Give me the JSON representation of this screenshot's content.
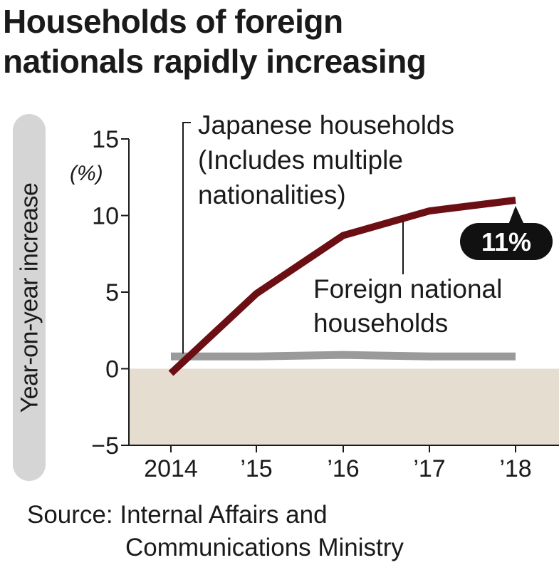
{
  "title": {
    "line1": "Households of foreign",
    "line2": "nationals rapidly increasing"
  },
  "source": {
    "line1": "Source: Internal Affairs and",
    "line2": "Communications Ministry"
  },
  "colors": {
    "foreign_line": "#6b0f14",
    "japanese_line": "#9a9a9a",
    "negative_band": "#e4ddd0",
    "ylabel_pill": "#d5d5d5",
    "badge": "#111111"
  },
  "chart_data": {
    "type": "line",
    "ylabel": "Year-on-year increase",
    "yunit": "(%)",
    "ylim": [
      -5,
      15
    ],
    "yticks": [
      "15",
      "10",
      "5",
      "0",
      "−5"
    ],
    "ytick_values": [
      15,
      10,
      5,
      0,
      -5
    ],
    "categories": [
      "2014",
      "’15",
      "’16",
      "’17",
      "’18"
    ],
    "series": [
      {
        "name": "Foreign national households",
        "values": [
          -0.3,
          4.9,
          8.7,
          10.3,
          11.0
        ]
      },
      {
        "name": "Japanese households (Includes multiple nationalities)",
        "values": [
          0.8,
          0.8,
          0.9,
          0.8,
          0.8
        ]
      }
    ],
    "annotations": {
      "japanese_line1": "Japanese households",
      "japanese_line2": "(Includes multiple",
      "japanese_line3": "nationalities)",
      "foreign_line1": "Foreign national",
      "foreign_line2": "households",
      "badge": "11%"
    },
    "grid": false
  }
}
